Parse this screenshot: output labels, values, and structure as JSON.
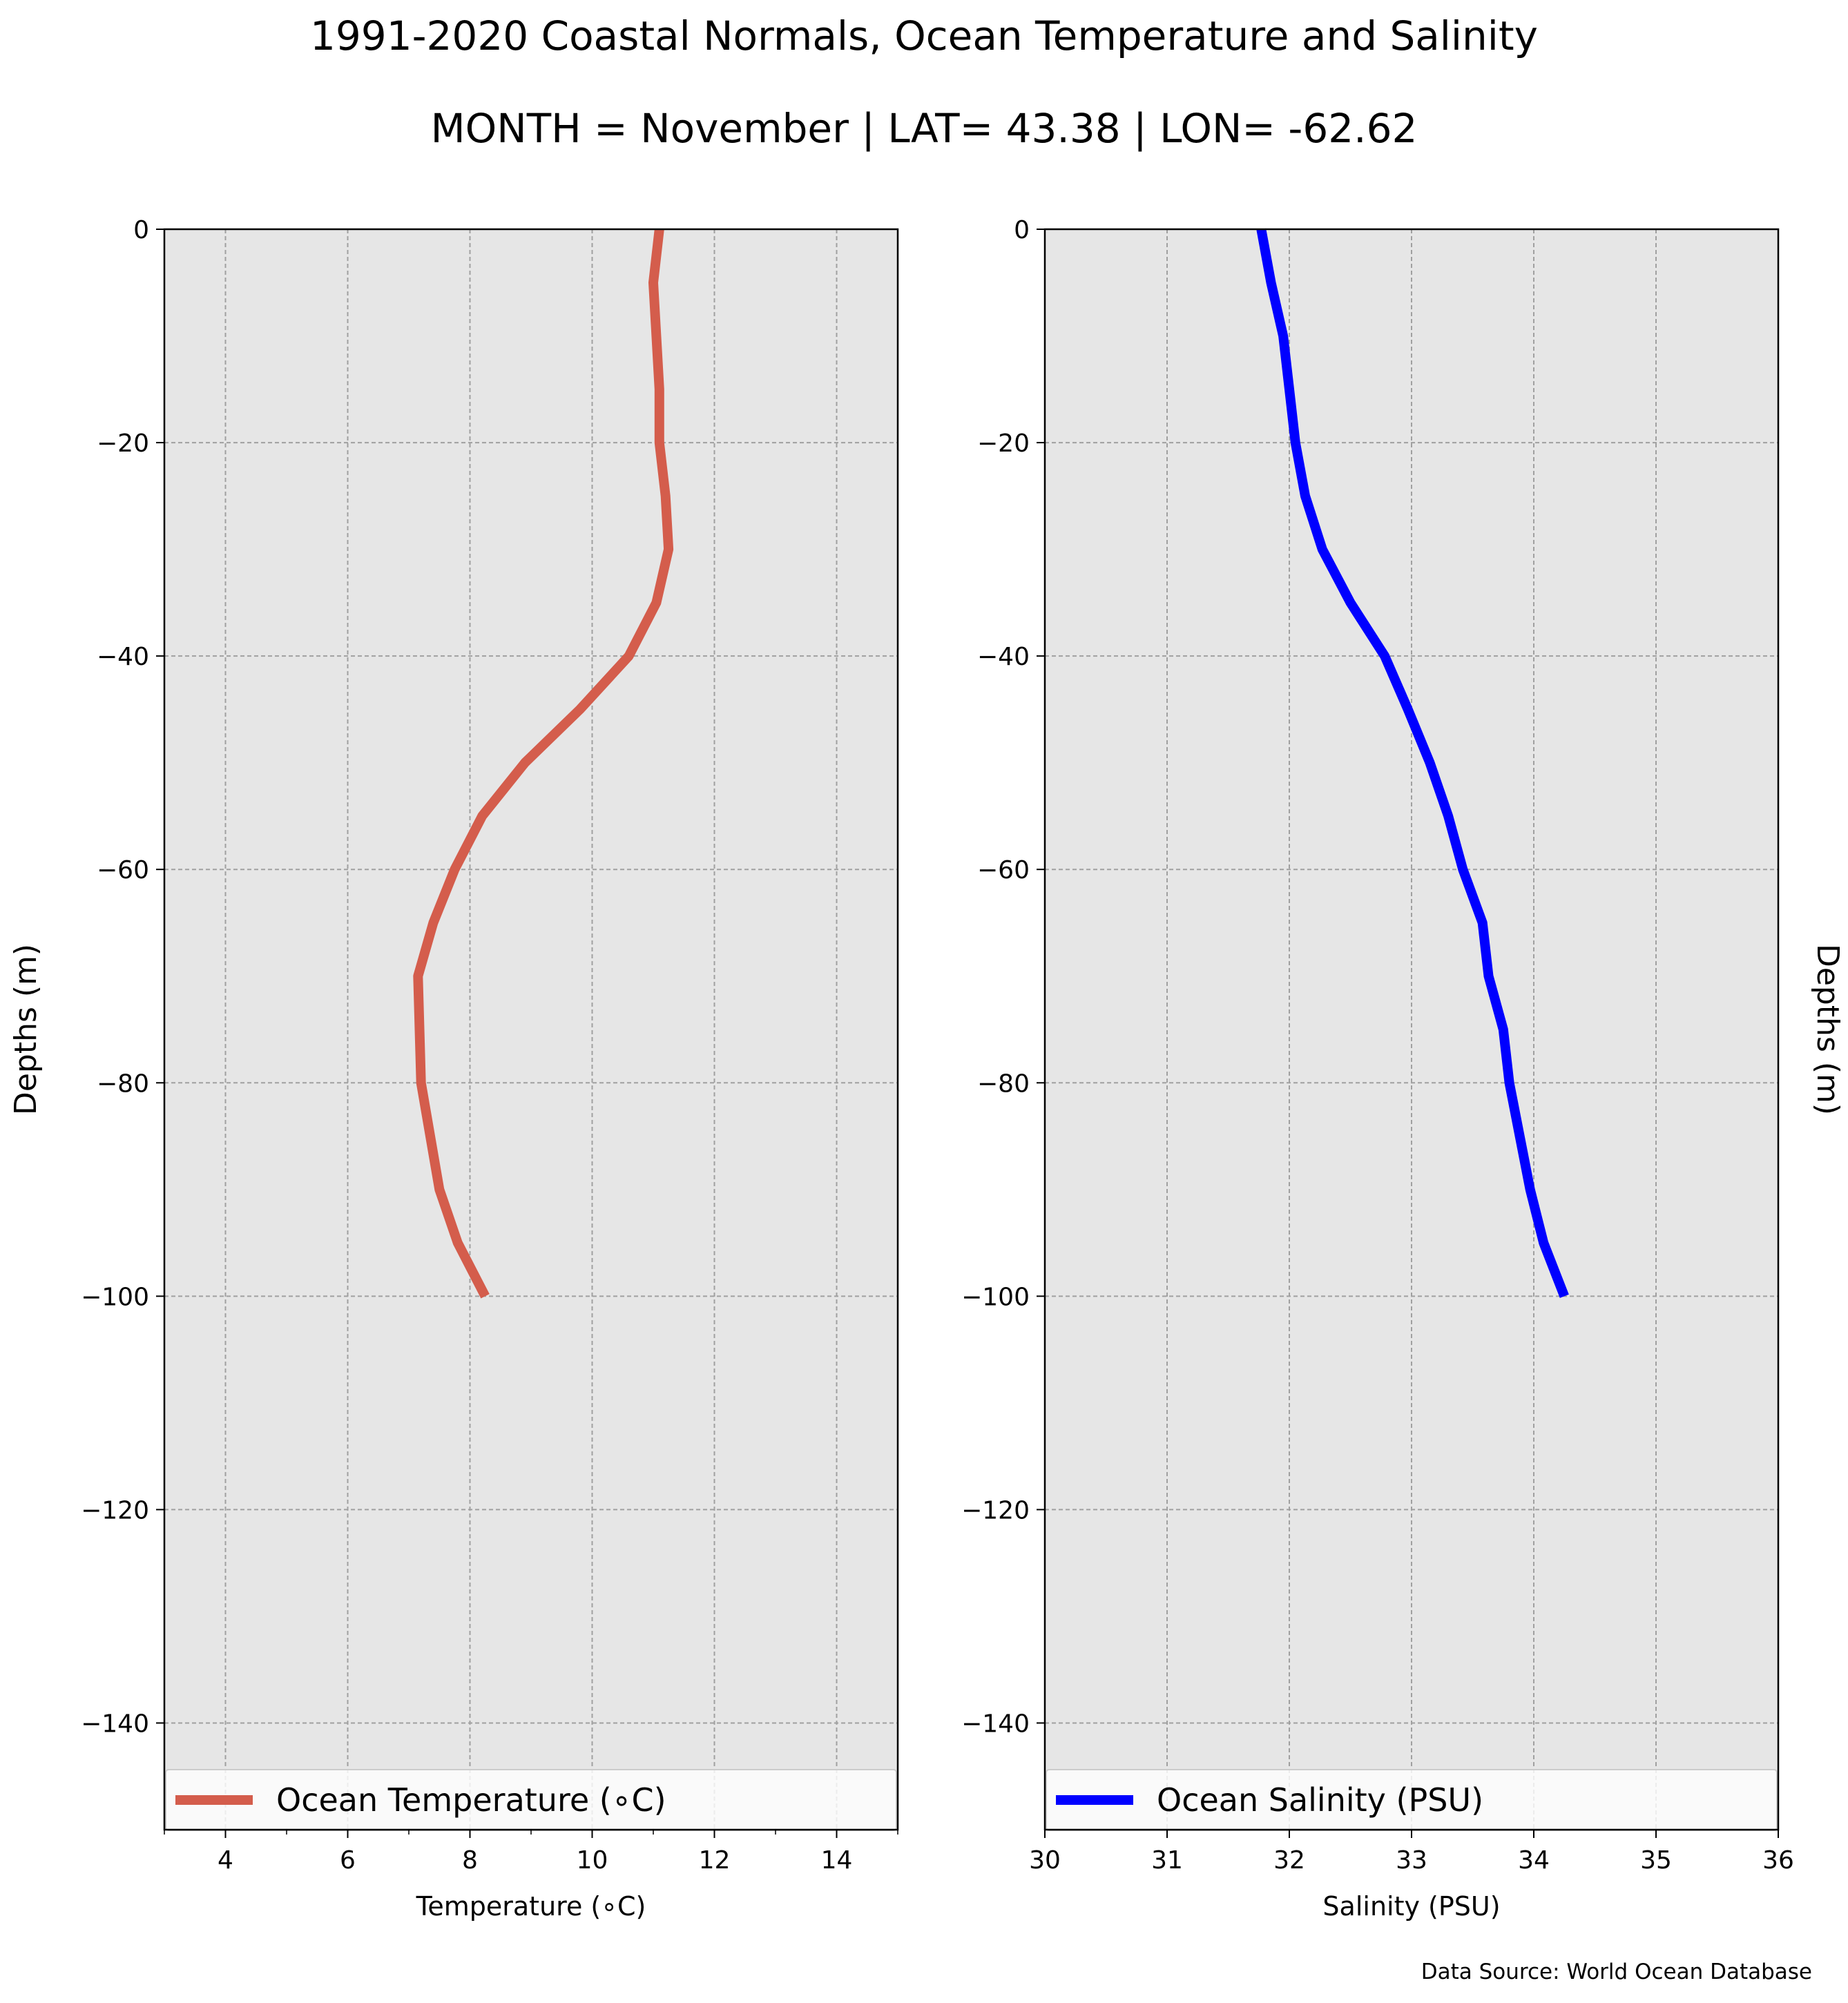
{
  "titles": {
    "main": "1991-2020 Coastal Normals, Ocean Temperature and Salinity",
    "sub": "MONTH = November | LAT= 43.38 | LON= -62.62"
  },
  "source_note": "Data Source: World Ocean Database",
  "chart_data": [
    {
      "type": "line",
      "xlabel": "Temperature ($^\\circ$C)",
      "xlabel_display": "Temperature (∘C)",
      "ylabel": "Depths (m)",
      "xlim": [
        3,
        15
      ],
      "ylim": [
        -150,
        0
      ],
      "xticks": [
        4,
        6,
        8,
        10,
        12,
        14
      ],
      "yticks": [
        0,
        -20,
        -40,
        -60,
        -80,
        -100,
        -120,
        -140
      ],
      "grid": true,
      "legend_position": "bottom",
      "series": [
        {
          "name": "Ocean Temperature (∘C)",
          "color": "#d45d4c",
          "x": [
            11.1,
            11.0,
            11.05,
            11.1,
            11.1,
            11.2,
            11.25,
            11.05,
            10.6,
            9.8,
            8.9,
            8.2,
            7.75,
            7.4,
            7.15,
            7.2,
            7.5,
            7.8,
            8.25
          ],
          "y": [
            0,
            -5,
            -10,
            -15,
            -20,
            -25,
            -30,
            -35,
            -40,
            -45,
            -50,
            -55,
            -60,
            -65,
            -70,
            -80,
            -90,
            -95,
            -100
          ]
        }
      ]
    },
    {
      "type": "line",
      "xlabel": "Salinity (PSU)",
      "ylabel": "Depths (m)",
      "xlim": [
        30,
        36
      ],
      "ylim": [
        -150,
        0
      ],
      "xticks": [
        30,
        31,
        32,
        33,
        34,
        35,
        36
      ],
      "yticks": [
        0,
        -20,
        -40,
        -60,
        -80,
        -100,
        -120,
        -140
      ],
      "grid": true,
      "legend_position": "bottom",
      "series": [
        {
          "name": "Ocean Salinity (PSU)",
          "color": "#0000ff",
          "x": [
            31.77,
            31.85,
            31.95,
            32.0,
            32.05,
            32.13,
            32.27,
            32.5,
            32.78,
            32.97,
            33.15,
            33.3,
            33.42,
            33.58,
            33.63,
            33.75,
            33.8,
            33.97,
            34.08,
            34.25
          ],
          "y": [
            0,
            -5,
            -10,
            -15,
            -20,
            -25,
            -30,
            -35,
            -40,
            -45,
            -50,
            -55,
            -60,
            -65,
            -70,
            -75,
            -80,
            -90,
            -95,
            -100
          ]
        }
      ]
    }
  ]
}
